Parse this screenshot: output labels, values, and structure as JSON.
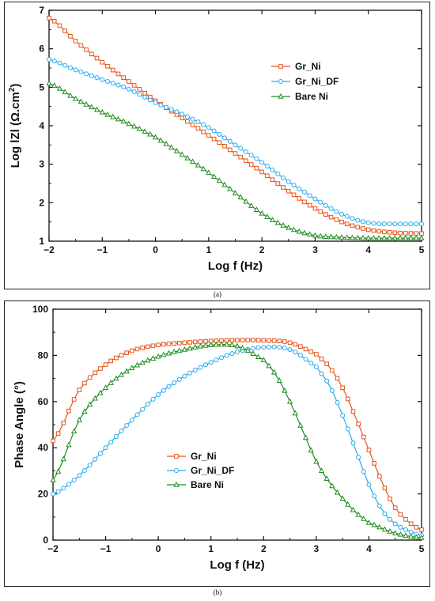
{
  "captions": {
    "a": "(a)",
    "b": "(b)"
  },
  "colors": {
    "Gr_Ni": "#e8541a",
    "Gr_Ni_DF": "#22aaf2",
    "Bare Ni": "#1e8c1e"
  },
  "chart_data": [
    {
      "type": "line",
      "panel": "a",
      "xlabel": "Log f (Hz)",
      "ylabel_parts": [
        "Log lZl (Ω.cm",
        "2",
        ")"
      ],
      "xlim": [
        -2,
        5
      ],
      "ylim": [
        1,
        7
      ],
      "xticks": [
        -2,
        -1,
        0,
        1,
        2,
        3,
        4,
        5
      ],
      "yticks": [
        1,
        2,
        3,
        4,
        5,
        6,
        7
      ],
      "legend_position": "upper-right",
      "series": [
        {
          "name": "Gr_Ni",
          "marker": "square",
          "x": [
            -2,
            -1.5,
            -1,
            -0.5,
            0,
            0.5,
            1,
            1.5,
            2,
            2.5,
            3,
            3.5,
            4,
            4.5,
            5
          ],
          "y": [
            6.8,
            6.2,
            5.65,
            5.15,
            4.65,
            4.2,
            3.75,
            3.28,
            2.8,
            2.3,
            1.85,
            1.5,
            1.3,
            1.22,
            1.2
          ]
        },
        {
          "name": "Gr_Ni_DF",
          "marker": "circle",
          "x": [
            -2,
            -1.5,
            -1,
            -0.5,
            0,
            0.5,
            1,
            1.5,
            2,
            2.5,
            3,
            3.5,
            4,
            4.5,
            5
          ],
          "y": [
            5.72,
            5.45,
            5.2,
            4.95,
            4.6,
            4.3,
            3.95,
            3.5,
            3.05,
            2.55,
            2.1,
            1.7,
            1.48,
            1.45,
            1.45
          ]
        },
        {
          "name": "Bare Ni",
          "marker": "triangle",
          "x": [
            -2,
            -1.5,
            -1,
            -0.5,
            0,
            0.5,
            1,
            1.5,
            2,
            2.5,
            3,
            3.5,
            4,
            4.5,
            5
          ],
          "y": [
            5.1,
            4.7,
            4.35,
            4.05,
            3.7,
            3.25,
            2.78,
            2.25,
            1.72,
            1.35,
            1.15,
            1.1,
            1.08,
            1.08,
            1.08
          ]
        }
      ]
    },
    {
      "type": "line",
      "panel": "b",
      "xlabel": "Log f (Hz)",
      "ylabel": "Phase Angle (°)",
      "xlim": [
        -2,
        5
      ],
      "ylim": [
        0,
        100
      ],
      "xticks": [
        -2,
        -1,
        0,
        1,
        2,
        3,
        4,
        5
      ],
      "yticks": [
        0,
        20,
        40,
        60,
        80,
        100
      ],
      "legend_position": "lower-center",
      "series": [
        {
          "name": "Gr_Ni",
          "marker": "square",
          "x": [
            -2,
            -1.5,
            -1,
            -0.5,
            0,
            0.5,
            1,
            1.5,
            2,
            2.5,
            3,
            3.25,
            3.5,
            3.75,
            4,
            4.25,
            4.5,
            4.75,
            5
          ],
          "y": [
            43,
            65,
            76,
            82,
            84.5,
            85.5,
            86.2,
            86.6,
            86.5,
            85.5,
            80.5,
            75,
            66,
            53,
            39,
            25,
            14,
            8,
            4.5
          ]
        },
        {
          "name": "Gr_Ni_DF",
          "marker": "circle",
          "x": [
            -2,
            -1.5,
            -1,
            -0.5,
            0,
            0.5,
            1,
            1.5,
            2,
            2.5,
            3,
            3.25,
            3.5,
            3.75,
            4,
            4.25,
            4.5,
            4.75,
            5
          ],
          "y": [
            20,
            28,
            40,
            52,
            63,
            71,
            77,
            81.5,
            83.5,
            82.5,
            75,
            67,
            54,
            39,
            24,
            13,
            7,
            4,
            2
          ]
        },
        {
          "name": "Bare Ni",
          "marker": "triangle",
          "x": [
            -2,
            -1.5,
            -1,
            -0.5,
            0,
            0.5,
            1,
            1.5,
            2,
            2.25,
            2.5,
            2.75,
            3,
            3.25,
            3.5,
            3.75,
            4,
            4.5,
            5
          ],
          "y": [
            26,
            52,
            66,
            74.5,
            79.5,
            82.5,
            84.5,
            84,
            78,
            71,
            60,
            47,
            34,
            25,
            18,
            12,
            7.5,
            3,
            1
          ]
        }
      ]
    }
  ]
}
